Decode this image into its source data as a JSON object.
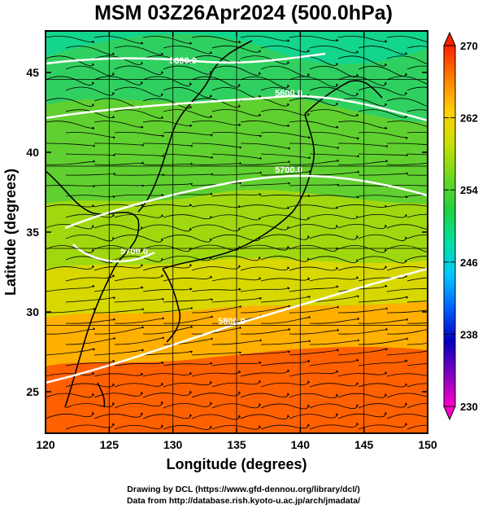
{
  "title": "MSM 03Z26Apr2024 (500.0hPa)",
  "x_axis": {
    "label": "Longitude (degrees)",
    "ticks": [
      "120",
      "125",
      "130",
      "135",
      "140",
      "145",
      "150"
    ],
    "range": [
      120,
      150
    ]
  },
  "y_axis": {
    "label": "Latitude  (degrees)",
    "ticks": [
      "25",
      "30",
      "35",
      "40",
      "45"
    ],
    "range": [
      22.4,
      47.6
    ]
  },
  "colorbar": {
    "ticks": [
      "270",
      "262",
      "254",
      "246",
      "238",
      "230"
    ],
    "range": [
      230,
      270
    ],
    "colors": [
      "#ff00c8",
      "#8000c0",
      "#0000c0",
      "#0060ff",
      "#00c8ff",
      "#00e0a0",
      "#20d040",
      "#70d820",
      "#c8e000",
      "#ffd000",
      "#ff8000",
      "#ff2000"
    ]
  },
  "contours": [
    {
      "label": "5600.0"
    },
    {
      "label": "5600.0"
    },
    {
      "label": "5700.0"
    },
    {
      "label": "5700.0"
    },
    {
      "label": "5800.0"
    }
  ],
  "footer": {
    "line1": "Drawing by DCL (https://www.gfd-dennou.org/library/dcl/)",
    "line2": "Data from http://database.rish.kyoto-u.ac.jp/arch/jmadata/"
  }
}
